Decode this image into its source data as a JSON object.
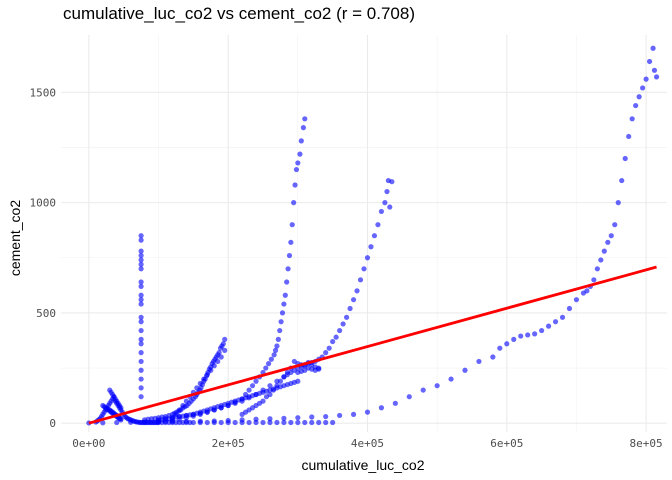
{
  "chart_data": {
    "type": "scatter",
    "title": "cumulative_luc_co2 vs cement_co2 (r = 0.708)",
    "xlabel": "cumulative_luc_co2",
    "ylabel": "cement_co2",
    "xlim": [
      -40000,
      830000
    ],
    "ylim": [
      -40,
      1760
    ],
    "x_ticks": [
      0,
      200000,
      400000,
      600000,
      800000
    ],
    "x_tick_labels": [
      "0e+00",
      "2e+05",
      "4e+05",
      "6e+05",
      "8e+05"
    ],
    "y_ticks": [
      0,
      500,
      1000,
      1500
    ],
    "y_tick_labels": [
      "0",
      "500",
      "1000",
      "1500"
    ],
    "grid": true,
    "point_color": "#0000ff",
    "line_color": "#ff0000",
    "trend_line": {
      "x": [
        0,
        815000
      ],
      "y": [
        0,
        708
      ]
    },
    "series": [
      {
        "x": [
          810000,
          805000,
          812000,
          815000,
          800000,
          795000,
          790000,
          785000,
          780000,
          775000,
          770000,
          765000,
          760000,
          755000,
          750000,
          745000,
          740000,
          735000,
          730000,
          725000,
          720000,
          715000,
          710000,
          700000,
          690000,
          680000,
          670000,
          660000,
          650000,
          640000,
          630000,
          620000,
          610000,
          600000,
          590000,
          580000,
          560000,
          540000,
          520000,
          500000,
          480000,
          460000,
          440000,
          420000,
          400000,
          380000,
          360000,
          340000,
          320000,
          300000,
          280000,
          260000,
          240000,
          220000,
          200000,
          180000,
          160000,
          140000,
          120000,
          100000,
          80000,
          60000,
          40000,
          20000,
          0
        ],
        "y": [
          1700,
          1640,
          1600,
          1570,
          1560,
          1520,
          1480,
          1440,
          1380,
          1300,
          1200,
          1100,
          1000,
          900,
          850,
          820,
          780,
          740,
          700,
          650,
          620,
          600,
          590,
          560,
          520,
          480,
          460,
          440,
          420,
          405,
          400,
          395,
          380,
          360,
          340,
          300,
          280,
          240,
          200,
          170,
          150,
          120,
          90,
          70,
          50,
          40,
          35,
          30,
          28,
          25,
          22,
          20,
          18,
          15,
          12,
          10,
          9,
          8,
          7,
          6,
          5,
          4,
          3,
          2,
          1
        ]
      },
      {
        "x": [
          430000,
          435000,
          428000,
          425000,
          432000,
          420000,
          415000,
          410000,
          405000,
          400000,
          395000,
          390000,
          385000,
          380000,
          375000,
          370000,
          365000,
          360000,
          355000,
          350000,
          345000,
          340000,
          335000,
          330000,
          325000,
          320000,
          315000,
          310000,
          305000,
          300000,
          295000,
          290000,
          285000,
          280000,
          270000,
          260000,
          250000,
          240000,
          230000,
          220000,
          210000,
          200000,
          190000,
          180000,
          170000,
          160000,
          150000,
          140000,
          130000,
          120000,
          110000,
          100000
        ],
        "y": [
          1100,
          1095,
          1050,
          1000,
          980,
          960,
          900,
          850,
          800,
          750,
          700,
          650,
          600,
          560,
          520,
          480,
          450,
          420,
          390,
          370,
          340,
          320,
          300,
          290,
          280,
          275,
          270,
          265,
          255,
          250,
          240,
          230,
          220,
          210,
          190,
          170,
          150,
          130,
          115,
          100,
          90,
          80,
          70,
          60,
          50,
          45,
          40,
          35,
          30,
          25,
          20,
          15
        ]
      },
      {
        "x": [
          310000,
          308000,
          305000,
          303000,
          300000,
          298000,
          296000,
          294000,
          292000,
          290000,
          288000,
          286000,
          284000,
          282000,
          280000,
          278000,
          276000,
          274000,
          272000,
          270000,
          268000,
          266000,
          262000,
          258000,
          254000,
          250000,
          245000,
          240000,
          235000,
          230000,
          225000,
          220000,
          210000,
          200000,
          190000,
          180000,
          170000,
          160000,
          150000,
          140000,
          130000,
          120000,
          110000,
          100000
        ],
        "y": [
          1380,
          1340,
          1280,
          1220,
          1180,
          1150,
          1080,
          1000,
          900,
          820,
          760,
          700,
          640,
          580,
          540,
          500,
          460,
          420,
          380,
          350,
          330,
          310,
          290,
          270,
          250,
          230,
          210,
          190,
          170,
          150,
          130,
          110,
          95,
          80,
          70,
          60,
          50,
          40,
          32,
          25,
          18,
          12,
          8,
          5
        ]
      },
      {
        "x": [
          75000,
          75000,
          75000,
          75000,
          75000,
          75000,
          75000,
          75000,
          75000,
          75000,
          75000,
          75000,
          75000,
          75000,
          75000,
          75000,
          75000,
          75000,
          75000,
          75000,
          75000,
          75000,
          75000
        ],
        "y": [
          850,
          830,
          780,
          760,
          740,
          720,
          700,
          640,
          620,
          580,
          560,
          540,
          480,
          460,
          420,
          380,
          360,
          320,
          280,
          240,
          200,
          160,
          120
        ]
      },
      {
        "x": [
          295000,
          300000,
          305000,
          310000,
          315000,
          320000,
          325000,
          330000,
          300000,
          305000,
          310000,
          315000,
          320000,
          325000,
          330000,
          290000,
          285000,
          280000,
          275000,
          270000,
          265000,
          260000,
          255000,
          250000,
          245000,
          240000,
          235000,
          230000,
          225000,
          220000
        ],
        "y": [
          280,
          270,
          265,
          260,
          275,
          265,
          255,
          250,
          230,
          235,
          240,
          250,
          245,
          240,
          245,
          250,
          230,
          210,
          190,
          170,
          150,
          130,
          120,
          100,
          90,
          80,
          70,
          60,
          50,
          40
        ]
      },
      {
        "x": [
          195000,
          193000,
          191000,
          189000,
          187000,
          185000,
          183000,
          181000,
          179000,
          177000,
          175000,
          173000,
          171000,
          169000,
          167000,
          165000,
          163000,
          161000,
          159000,
          157000,
          155000,
          153000,
          150000,
          147000,
          144000,
          141000,
          138000,
          135000,
          132000,
          129000,
          126000,
          123000,
          120000,
          115000,
          110000,
          105000,
          100000,
          95000,
          90000,
          85000,
          80000,
          195000,
          190000,
          185000,
          180000,
          175000,
          170000,
          165000,
          160000,
          155000,
          150000,
          145000,
          140000,
          135000,
          130000,
          125000,
          120000
        ],
        "y": [
          380,
          360,
          350,
          340,
          320,
          310,
          300,
          290,
          280,
          270,
          255,
          245,
          230,
          215,
          200,
          190,
          175,
          160,
          150,
          140,
          130,
          120,
          110,
          100,
          90,
          80,
          75,
          70,
          60,
          55,
          50,
          45,
          40,
          35,
          30,
          28,
          25,
          22,
          20,
          18,
          15,
          330,
          300,
          280,
          260,
          240,
          220,
          200,
          180,
          160,
          140,
          120,
          100,
          80,
          60,
          40,
          20
        ]
      },
      {
        "x": [
          10000,
          12000,
          14000,
          16000,
          18000,
          20000,
          22000,
          24000,
          26000,
          28000,
          30000,
          32000,
          34000,
          36000,
          38000,
          40000,
          42000,
          44000,
          46000,
          48000,
          50000,
          52000,
          54000,
          56000,
          58000,
          60000,
          62000,
          64000,
          66000,
          68000,
          70000,
          72000,
          74000,
          76000,
          78000,
          80000,
          82000,
          84000,
          86000,
          88000,
          90000,
          92000,
          94000,
          96000,
          98000,
          100000,
          105000,
          110000,
          115000,
          120000,
          125000,
          130000,
          135000,
          140000,
          145000,
          150000,
          160000,
          170000,
          180000,
          190000,
          200000,
          210000,
          220000,
          230000,
          240000,
          250000,
          260000,
          270000,
          280000,
          290000,
          300000,
          310000,
          320000,
          330000,
          340000,
          350000
        ],
        "y": [
          5,
          10,
          15,
          20,
          30,
          40,
          50,
          60,
          70,
          80,
          90,
          100,
          110,
          120,
          100,
          90,
          80,
          70,
          60,
          50,
          40,
          30,
          25,
          20,
          18,
          15,
          12,
          10,
          8,
          6,
          5,
          4,
          3,
          3,
          3,
          3,
          3,
          3,
          3,
          3,
          3,
          3,
          3,
          3,
          3,
          3,
          3,
          3,
          3,
          3,
          3,
          3,
          3,
          3,
          3,
          3,
          3,
          3,
          3,
          3,
          3,
          3,
          3,
          3,
          3,
          3,
          3,
          3,
          3,
          3,
          3,
          3,
          3,
          3,
          3,
          3
        ]
      },
      {
        "x": [
          30000,
          32000,
          34000,
          36000,
          38000,
          40000,
          42000,
          44000,
          46000,
          30000,
          32000,
          34000,
          36000,
          38000,
          40000,
          42000,
          44000,
          46000,
          20000,
          22000,
          24000,
          26000,
          28000,
          30000,
          32000,
          34000,
          36000,
          38000,
          40000,
          42000,
          44000,
          46000
        ],
        "y": [
          150,
          140,
          130,
          120,
          110,
          100,
          90,
          80,
          70,
          60,
          55,
          50,
          45,
          40,
          35,
          30,
          25,
          20,
          80,
          75,
          70,
          65,
          60,
          55,
          50,
          45,
          40,
          35,
          30,
          25,
          20,
          15
        ]
      },
      {
        "x": [
          100000,
          105000,
          110000,
          115000,
          120000,
          125000,
          130000,
          135000,
          140000,
          145000,
          150000,
          155000,
          160000,
          165000,
          170000,
          175000,
          180000,
          185000,
          190000,
          195000,
          200000,
          205000,
          210000,
          215000,
          220000,
          225000,
          230000,
          235000,
          240000,
          245000,
          250000,
          255000,
          260000,
          265000,
          270000,
          275000,
          280000,
          285000,
          290000,
          295000,
          300000
        ],
        "y": [
          12,
          15,
          18,
          20,
          25,
          28,
          30,
          32,
          35,
          38,
          40,
          45,
          50,
          55,
          60,
          65,
          70,
          75,
          80,
          85,
          90,
          95,
          100,
          105,
          110,
          115,
          120,
          125,
          130,
          135,
          140,
          145,
          150,
          155,
          160,
          165,
          170,
          175,
          180,
          185,
          190
        ]
      }
    ]
  }
}
